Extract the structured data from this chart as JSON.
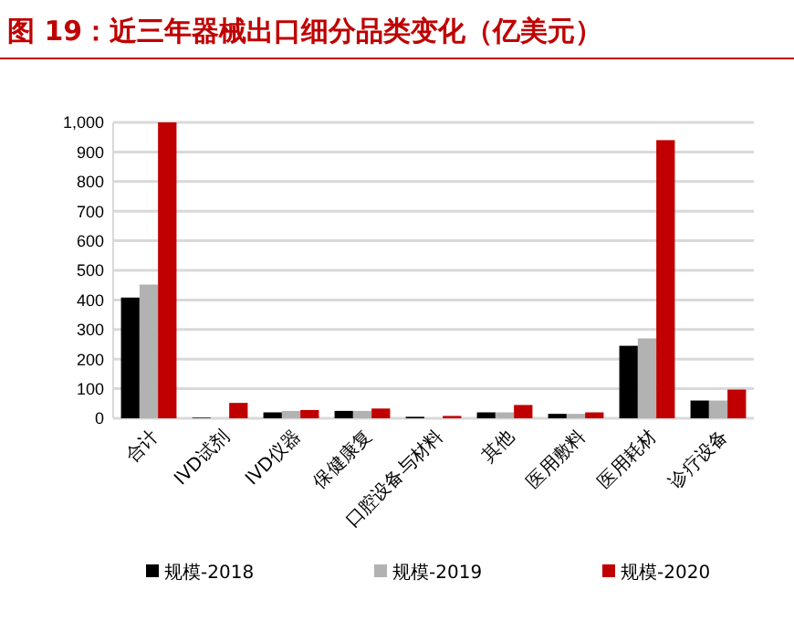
{
  "chart_data": {
    "type": "bar",
    "title": "图 19：近三年器械出口细分品类变化（亿美元）",
    "categories": [
      "合计",
      "IVD试剂",
      "IVD仪器",
      "保健康复",
      "口腔设备与材料",
      "其他",
      "医用敷料",
      "医用耗材",
      "诊疗设备"
    ],
    "series": [
      {
        "name": "规模-2018",
        "color": "#000000",
        "values": [
          408,
          2,
          20,
          25,
          5,
          20,
          15,
          245,
          60
        ]
      },
      {
        "name": "规模-2019",
        "color": "#b2b2b2",
        "values": [
          452,
          null,
          25,
          25,
          null,
          20,
          15,
          270,
          60
        ]
      },
      {
        "name": "规模-2020",
        "color": "#c00000",
        "values": [
          1000,
          52,
          28,
          33,
          8,
          45,
          20,
          940,
          97
        ]
      }
    ],
    "ylim": [
      0,
      1000
    ],
    "yticks": [
      0,
      100,
      200,
      300,
      400,
      500,
      600,
      700,
      800,
      900,
      {
        "value": 1000,
        "label": "1,000"
      }
    ],
    "grid": "y",
    "legend": "bottom"
  }
}
